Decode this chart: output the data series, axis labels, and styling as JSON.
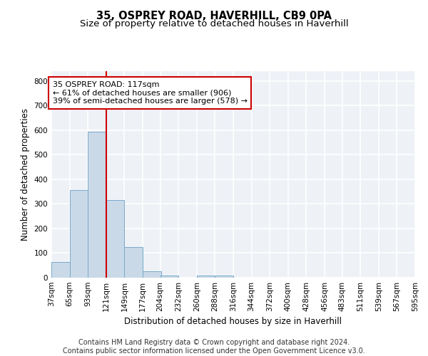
{
  "title1": "35, OSPREY ROAD, HAVERHILL, CB9 0PA",
  "title2": "Size of property relative to detached houses in Haverhill",
  "xlabel": "Distribution of detached houses by size in Haverhill",
  "ylabel": "Number of detached properties",
  "bar_values": [
    65,
    355,
    595,
    315,
    125,
    25,
    10,
    0,
    10,
    10,
    0,
    0,
    0,
    0,
    0,
    0,
    0,
    0,
    0,
    0
  ],
  "bin_edges": [
    37,
    65,
    93,
    121,
    149,
    177,
    204,
    232,
    260,
    288,
    316,
    344,
    372,
    400,
    428,
    456,
    483,
    511,
    539,
    567,
    595
  ],
  "tick_labels": [
    "37sqm",
    "65sqm",
    "93sqm",
    "121sqm",
    "149sqm",
    "177sqm",
    "204sqm",
    "232sqm",
    "260sqm",
    "288sqm",
    "316sqm",
    "344sqm",
    "372sqm",
    "400sqm",
    "428sqm",
    "456sqm",
    "483sqm",
    "511sqm",
    "539sqm",
    "567sqm",
    "595sqm"
  ],
  "bar_color": "#c9d9e8",
  "bar_edge_color": "#7aaac8",
  "property_line_x": 121,
  "annotation_line1": "35 OSPREY ROAD: 117sqm",
  "annotation_line2": "← 61% of detached houses are smaller (906)",
  "annotation_line3": "39% of semi-detached houses are larger (578) →",
  "annotation_box_color": "#ffffff",
  "annotation_box_edge_color": "#cc0000",
  "red_line_color": "#cc0000",
  "ylim": [
    0,
    840
  ],
  "yticks": [
    0,
    100,
    200,
    300,
    400,
    500,
    600,
    700,
    800
  ],
  "background_color": "#eef2f7",
  "footer_line1": "Contains HM Land Registry data © Crown copyright and database right 2024.",
  "footer_line2": "Contains public sector information licensed under the Open Government Licence v3.0.",
  "grid_color": "#ffffff",
  "title1_fontsize": 10.5,
  "title2_fontsize": 9.5,
  "axis_label_fontsize": 8.5,
  "tick_fontsize": 7.5,
  "annotation_fontsize": 8,
  "footer_fontsize": 7
}
